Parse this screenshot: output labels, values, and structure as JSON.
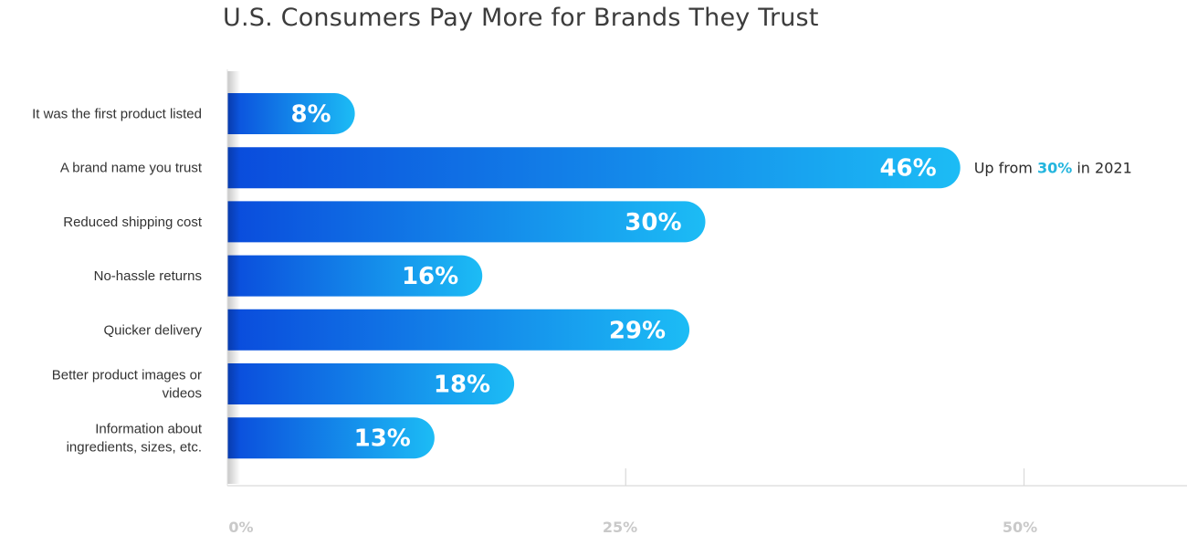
{
  "chart_data": {
    "type": "bar",
    "orientation": "horizontal",
    "title": "U.S. Consumers Pay More for Brands They Trust",
    "categories": [
      [
        "It was the first product listed"
      ],
      [
        "A brand name you trust"
      ],
      [
        "Reduced shipping cost"
      ],
      [
        "No-hassle returns"
      ],
      [
        "Quicker delivery"
      ],
      [
        "Better product images or",
        "videos"
      ],
      [
        "Information about",
        "ingredients, sizes, etc."
      ]
    ],
    "values": [
      8,
      46,
      30,
      16,
      29,
      18,
      13
    ],
    "value_labels": [
      "8%",
      "46%",
      "30%",
      "16%",
      "29%",
      "18%",
      "13%"
    ],
    "xticks": [
      0,
      25,
      50
    ],
    "xtick_labels": [
      "0%",
      "25%",
      "50%"
    ],
    "xlim": [
      0,
      60
    ],
    "grid": false,
    "bar_gradient": [
      "#0a4bdc",
      "#1cbcf5"
    ],
    "annotation": {
      "category_index": 1,
      "prefix": "Up from ",
      "highlight": "30%",
      "suffix": " in 2021",
      "highlight_color": "#23b5de"
    }
  }
}
